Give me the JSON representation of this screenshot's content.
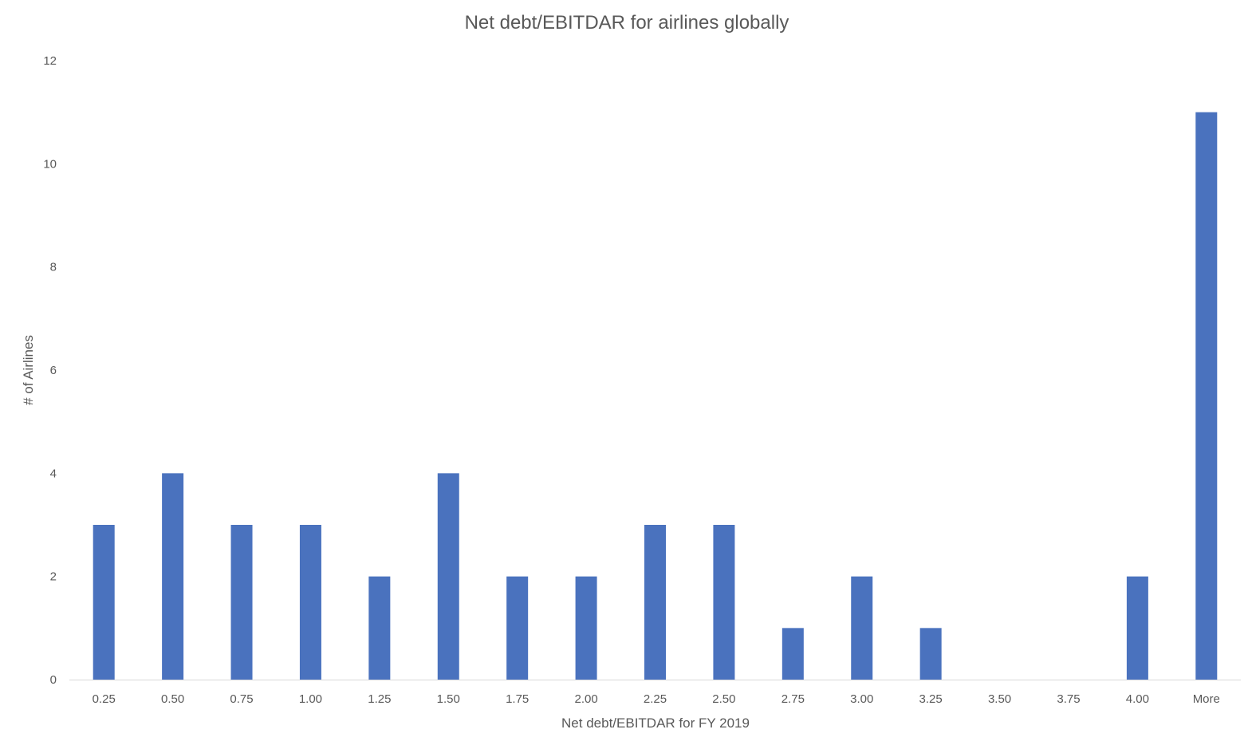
{
  "chart_data": {
    "type": "bar",
    "title": "Net debt/EBITDAR for airlines globally",
    "xlabel": "Net debt/EBITDAR for FY 2019",
    "ylabel": "# of Airlines",
    "categories": [
      "0.25",
      "0.50",
      "0.75",
      "1.00",
      "1.25",
      "1.50",
      "1.75",
      "2.00",
      "2.25",
      "2.50",
      "2.75",
      "3.00",
      "3.25",
      "3.50",
      "3.75",
      "4.00",
      "More"
    ],
    "values": [
      3,
      4,
      3,
      3,
      2,
      4,
      2,
      2,
      3,
      3,
      1,
      2,
      1,
      0,
      0,
      2,
      11
    ],
    "ylim": [
      0,
      12
    ],
    "yticks": [
      0,
      2,
      4,
      6,
      8,
      10,
      12
    ],
    "grid": false,
    "legend": "none",
    "bar_color": "#4a72be",
    "text_color": "#595959",
    "axis_color": "#d9d9d9"
  }
}
